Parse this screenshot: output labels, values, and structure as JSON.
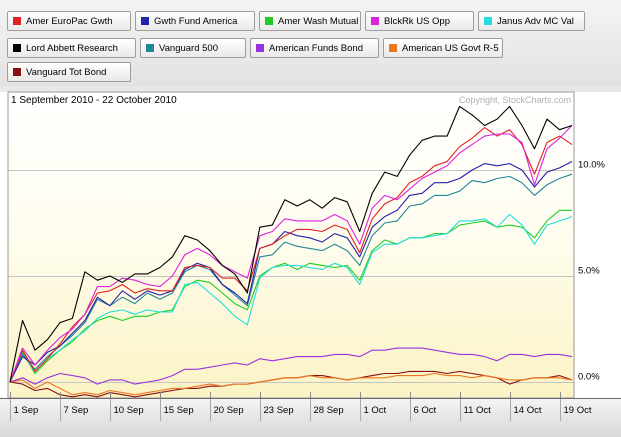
{
  "chart_data": {
    "type": "line",
    "title": "1 September 2010 - 22 October 2010",
    "watermark": "Copyright, StockCharts.com",
    "x_tick_labels": [
      "1 Sep",
      "7 Sep",
      "10 Sep",
      "15 Sep",
      "20 Sep",
      "23 Sep",
      "28 Sep",
      "1 Oct",
      "6 Oct",
      "11 Oct",
      "14 Oct",
      "19 Oct"
    ],
    "x_tick_index": [
      0,
      4,
      8,
      12,
      16,
      20,
      24,
      28,
      32,
      36,
      40,
      44
    ],
    "y_ticks": [
      "0.0%",
      "5.0%",
      "10.0%"
    ],
    "y_tick_values": [
      0,
      5,
      10
    ],
    "ylim": [
      -0.8,
      13.6
    ],
    "grid": true,
    "legend_position": "top",
    "series": [
      {
        "name": "Amer EuroPac Gwth",
        "color": "#dd2222",
        "values": [
          0,
          1.5,
          0.5,
          1.1,
          1.8,
          2.6,
          3.2,
          4.2,
          4.3,
          4.6,
          4.2,
          4.4,
          4.3,
          4.3,
          5.4,
          5.5,
          5.4,
          4.9,
          4.9,
          4.3,
          6.3,
          6.5,
          6.9,
          7.2,
          7.2,
          7.1,
          7.4,
          7.2,
          6.1,
          7.7,
          8.4,
          8.7,
          9.4,
          9.7,
          10.2,
          10.4,
          11.1,
          11.5,
          12.0,
          11.6,
          11.9,
          11.2,
          9.8,
          11.3,
          11.6,
          11.2
        ]
      },
      {
        "name": "Gwth Fund America",
        "color": "#2222aa",
        "values": [
          0,
          1.2,
          0.8,
          1.4,
          1.7,
          2.3,
          2.9,
          4.0,
          3.6,
          4.3,
          3.9,
          4.3,
          4.1,
          4.3,
          5.3,
          5.6,
          5.4,
          4.6,
          4.2,
          3.7,
          6.3,
          6.5,
          7.1,
          6.9,
          6.8,
          6.6,
          7.0,
          6.8,
          5.9,
          7.3,
          7.8,
          8.1,
          8.8,
          8.9,
          9.4,
          9.4,
          9.6,
          10.0,
          10.3,
          10.2,
          10.3,
          10.0,
          9.2,
          9.9,
          10.1,
          10.4
        ]
      },
      {
        "name": "Amer Wash Mutual",
        "color": "#22cc22",
        "values": [
          0,
          1.4,
          0.4,
          1.0,
          1.5,
          1.9,
          2.5,
          2.9,
          3.1,
          2.9,
          3.1,
          3.1,
          3.3,
          3.4,
          4.5,
          4.8,
          4.7,
          4.2,
          3.7,
          3.4,
          5.0,
          5.4,
          5.6,
          5.3,
          5.6,
          5.5,
          5.4,
          5.5,
          4.8,
          6.2,
          6.7,
          6.5,
          6.8,
          6.8,
          7.0,
          7.0,
          7.4,
          7.5,
          7.6,
          7.3,
          7.4,
          7.3,
          6.8,
          7.6,
          8.1,
          8.1
        ]
      },
      {
        "name": "BlckRk US Opp",
        "color": "#dd22dd",
        "values": [
          0,
          1.6,
          0.8,
          1.5,
          2.1,
          2.5,
          3.2,
          4.5,
          4.5,
          4.9,
          4.8,
          4.6,
          4.5,
          5.0,
          6.0,
          6.3,
          6.0,
          5.5,
          5.2,
          4.9,
          6.9,
          7.1,
          7.7,
          7.6,
          7.6,
          7.6,
          7.9,
          7.6,
          6.5,
          8.2,
          8.8,
          8.6,
          9.1,
          9.6,
          9.9,
          10.2,
          10.8,
          11.2,
          11.6,
          11.7,
          11.7,
          11.3,
          9.3,
          11.0,
          11.5,
          12.1
        ]
      },
      {
        "name": "Janus Adv MC Val",
        "color": "#22dddd",
        "values": [
          0,
          1.3,
          0.5,
          1.1,
          1.5,
          2.0,
          2.4,
          3.0,
          3.3,
          3.4,
          3.2,
          3.4,
          3.3,
          3.3,
          4.6,
          4.7,
          4.2,
          3.7,
          3.1,
          2.7,
          4.9,
          5.4,
          5.5,
          5.5,
          5.4,
          5.3,
          5.6,
          5.4,
          4.6,
          6.1,
          6.5,
          6.5,
          6.8,
          6.8,
          6.9,
          7.0,
          7.6,
          7.6,
          7.7,
          7.3,
          7.9,
          7.4,
          6.5,
          7.4,
          7.6,
          7.8
        ]
      },
      {
        "name": "Lord Abbett Research",
        "color": "#000000",
        "values": [
          0,
          2.9,
          1.5,
          2.0,
          2.8,
          3.0,
          5.2,
          4.8,
          5.0,
          4.7,
          5.1,
          5.1,
          5.4,
          5.9,
          6.9,
          6.7,
          6.2,
          5.5,
          5.1,
          4.2,
          7.3,
          7.4,
          8.6,
          8.3,
          8.6,
          8.2,
          8.7,
          8.5,
          7.1,
          8.9,
          9.9,
          9.7,
          10.7,
          11.4,
          11.6,
          11.6,
          13.0,
          12.6,
          12.1,
          12.4,
          13.0,
          12.1,
          11.0,
          12.4,
          11.9,
          12.1
        ]
      },
      {
        "name": "Vanguard 500",
        "color": "#228899",
        "values": [
          0,
          1.3,
          0.6,
          1.2,
          1.7,
          2.2,
          2.8,
          3.9,
          3.6,
          4.0,
          3.7,
          4.2,
          3.9,
          4.2,
          5.2,
          5.5,
          5.3,
          4.6,
          4.1,
          3.6,
          5.9,
          6.0,
          6.6,
          6.4,
          6.3,
          6.2,
          6.5,
          6.2,
          5.5,
          6.9,
          7.5,
          7.6,
          8.3,
          8.4,
          8.8,
          8.8,
          9.0,
          9.5,
          9.4,
          9.6,
          9.7,
          9.4,
          8.8,
          9.3,
          9.6,
          9.8
        ]
      },
      {
        "name": "American Funds Bond",
        "color": "#9933dd",
        "values": [
          0,
          0.2,
          -0.1,
          0.2,
          0.4,
          0.3,
          0.2,
          -0.1,
          0.1,
          0.1,
          -0.1,
          0.0,
          0.1,
          0.3,
          0.6,
          0.6,
          0.7,
          0.8,
          0.9,
          0.8,
          1.1,
          1.0,
          1.1,
          1.2,
          1.2,
          1.2,
          1.3,
          1.3,
          1.2,
          1.5,
          1.5,
          1.6,
          1.6,
          1.6,
          1.5,
          1.4,
          1.3,
          1.3,
          1.2,
          1.0,
          1.3,
          1.3,
          1.2,
          1.3,
          1.3,
          1.2
        ]
      },
      {
        "name": "American US Govt R-5",
        "color": "#ee7722",
        "values": [
          0,
          0.1,
          -0.3,
          0.0,
          -0.3,
          -0.6,
          -0.5,
          -0.6,
          -0.4,
          -0.5,
          -0.6,
          -0.5,
          -0.4,
          -0.3,
          -0.3,
          -0.2,
          -0.1,
          -0.2,
          -0.1,
          -0.1,
          0.0,
          0.1,
          0.2,
          0.2,
          0.3,
          0.2,
          0.2,
          0.1,
          0.2,
          0.2,
          0.2,
          0.3,
          0.3,
          0.3,
          0.4,
          0.3,
          0.3,
          0.2,
          0.3,
          0.2,
          0.1,
          0.1,
          0.2,
          0.2,
          0.2,
          0.1
        ]
      },
      {
        "name": "Vanguard Tot Bond",
        "color": "#881111",
        "values": [
          0,
          -0.1,
          -0.4,
          -0.3,
          -0.6,
          -0.7,
          -0.6,
          -0.7,
          -0.5,
          -0.6,
          -0.7,
          -0.6,
          -0.5,
          -0.4,
          -0.3,
          -0.3,
          -0.2,
          -0.2,
          -0.1,
          -0.1,
          0.0,
          0.1,
          0.2,
          0.2,
          0.3,
          0.3,
          0.2,
          0.1,
          0.2,
          0.3,
          0.4,
          0.4,
          0.5,
          0.5,
          0.5,
          0.4,
          0.5,
          0.4,
          0.3,
          0.2,
          -0.1,
          0.1,
          0.2,
          0.2,
          0.3,
          0.1
        ]
      }
    ]
  }
}
